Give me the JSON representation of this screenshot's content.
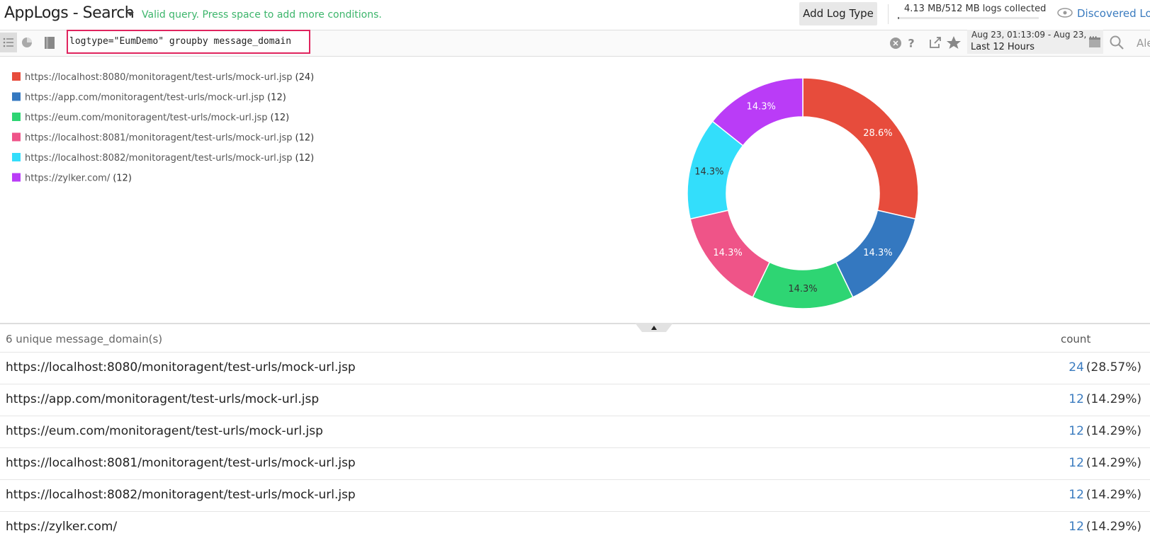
{
  "header": {
    "title": "AppLogs - Search",
    "status": "Valid query. Press space to add more conditions.",
    "add_button": "Add Log Type",
    "usage": "4.13 MB/512 MB logs collected",
    "discovered": "Discovered Log"
  },
  "toolbar": {
    "query": "logtype=\"EumDemo\" groupby message_domain",
    "time_range": "Aug 23, 01:13:09 - Aug 23, ...",
    "time_preset": "Last 12 Hours",
    "alerts": "Ale"
  },
  "chart_data": {
    "type": "pie",
    "categories": [
      "https://localhost:8080/monitoragent/test-urls/mock-url.jsp",
      "https://app.com/monitoragent/test-urls/mock-url.jsp",
      "https://eum.com/monitoragent/test-urls/mock-url.jsp",
      "https://localhost:8081/monitoragent/test-urls/mock-url.jsp",
      "https://localhost:8082/monitoragent/test-urls/mock-url.jsp",
      "https://zylker.com/"
    ],
    "values": [
      28.6,
      14.3,
      14.3,
      14.3,
      14.3,
      14.3
    ],
    "value_labels": [
      "28.6%",
      "14.3%",
      "14.3%",
      "14.3%",
      "14.3%",
      "14.3%"
    ],
    "counts": [
      24,
      12,
      12,
      12,
      12,
      12
    ],
    "count_labels": [
      "(24)",
      "(12)",
      "(12)",
      "(12)",
      "(12)",
      "(12)"
    ],
    "colors": [
      "#e74c3c",
      "#3478c0",
      "#2ed573",
      "#ef5488",
      "#33defb",
      "#ba3cf7"
    ],
    "donut": true,
    "legend": "top-left"
  },
  "table": {
    "summary": "6 unique message_domain(s)",
    "count_header": "count",
    "rows": [
      [
        "https://localhost:8080/monitoragent/test-urls/mock-url.jsp",
        24,
        "(28.57%)"
      ],
      [
        "https://app.com/monitoragent/test-urls/mock-url.jsp",
        12,
        "(14.29%)"
      ],
      [
        "https://eum.com/monitoragent/test-urls/mock-url.jsp",
        12,
        "(14.29%)"
      ],
      [
        "https://localhost:8081/monitoragent/test-urls/mock-url.jsp",
        12,
        "(14.29%)"
      ],
      [
        "https://localhost:8082/monitoragent/test-urls/mock-url.jsp",
        12,
        "(14.29%)"
      ],
      [
        "https://zylker.com/",
        12,
        "(14.29%)"
      ]
    ]
  }
}
